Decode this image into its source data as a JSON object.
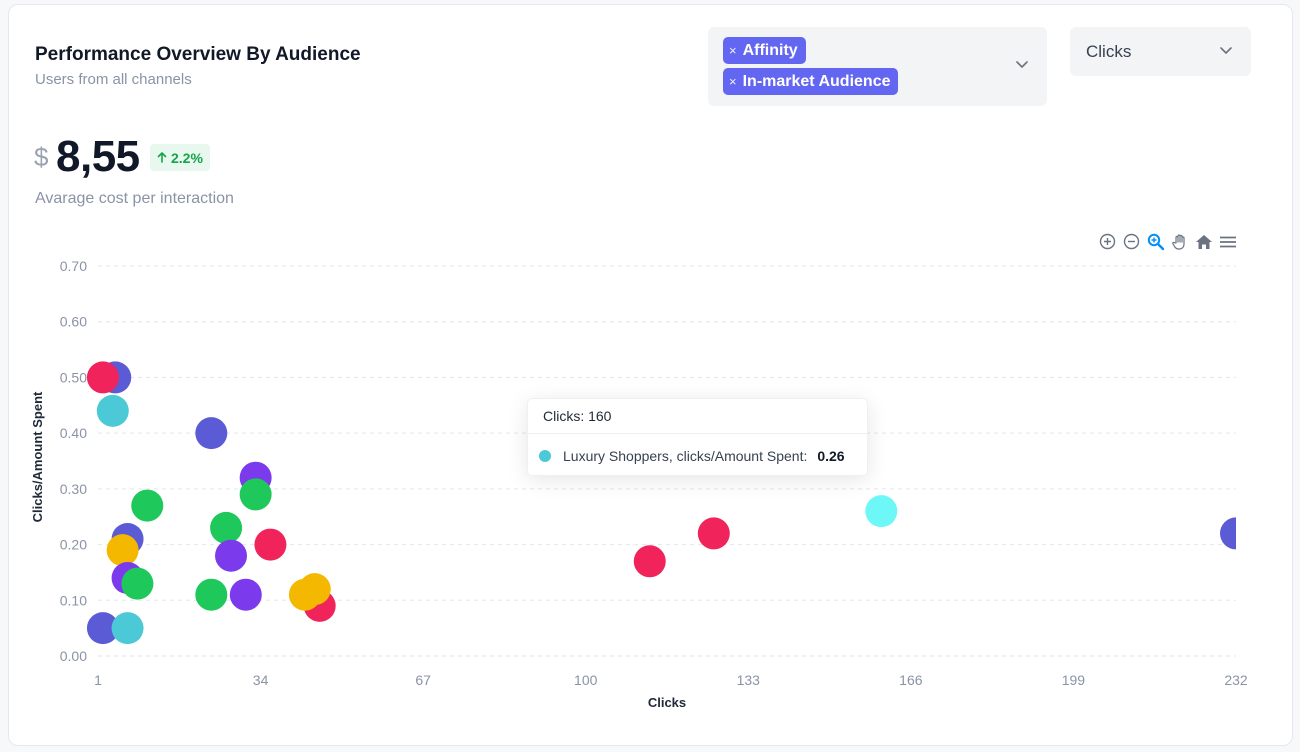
{
  "header": {
    "title": "Performance Overview By Audience",
    "subtitle": "Users from all channels"
  },
  "filters": {
    "audience_tags": [
      "Affinity",
      "In-market Audience"
    ],
    "remove_glyph": "×",
    "metric_select": "Clicks"
  },
  "kpi": {
    "currency": "$",
    "value": "8,55",
    "delta": "2.2%",
    "delta_direction": "up",
    "caption": "Avarage cost per interaction"
  },
  "toolbar": {
    "icons": [
      "zoom-in-icon",
      "zoom-out-icon",
      "selection-zoom-icon",
      "pan-hand-icon",
      "reset-home-icon",
      "menu-icon"
    ]
  },
  "tooltip": {
    "header": "Clicks: 160",
    "series": "Luxury Shoppers, clicks/Amount Spent:",
    "value": "0.26",
    "color": "#4cc9d6"
  },
  "colors": {
    "accent": "#6366f1",
    "positive": "#16a34a",
    "grid": "#e3e6ec"
  },
  "chart_data": {
    "type": "scatter",
    "xlabel": "Clicks",
    "ylabel": "Clicks/Amount Spent",
    "xlim": [
      1,
      232
    ],
    "ylim": [
      0,
      0.7
    ],
    "x_ticks": [
      1,
      34,
      67,
      100,
      133,
      166,
      199,
      232
    ],
    "y_ticks": [
      "0.00",
      "0.10",
      "0.20",
      "0.30",
      "0.40",
      "0.50",
      "0.60",
      "0.70"
    ],
    "grid": true,
    "points": [
      {
        "x": 4.5,
        "y": 0.5,
        "color": "#5b5bd6"
      },
      {
        "x": 2,
        "y": 0.5,
        "color": "#f0235a"
      },
      {
        "x": 4,
        "y": 0.44,
        "color": "#4cc9d6"
      },
      {
        "x": 24,
        "y": 0.4,
        "color": "#5b5bd6"
      },
      {
        "x": 33,
        "y": 0.32,
        "color": "#7c3aed"
      },
      {
        "x": 33,
        "y": 0.29,
        "color": "#1ec85a"
      },
      {
        "x": 11,
        "y": 0.27,
        "color": "#1ec85a"
      },
      {
        "x": 27,
        "y": 0.23,
        "color": "#1ec85a"
      },
      {
        "x": 7,
        "y": 0.21,
        "color": "#5b5bd6"
      },
      {
        "x": 36,
        "y": 0.2,
        "color": "#f0235a"
      },
      {
        "x": 6,
        "y": 0.19,
        "color": "#f5b800"
      },
      {
        "x": 28,
        "y": 0.18,
        "color": "#7c3aed"
      },
      {
        "x": 7,
        "y": 0.14,
        "color": "#7c3aed"
      },
      {
        "x": 9,
        "y": 0.13,
        "color": "#1ec85a"
      },
      {
        "x": 24,
        "y": 0.11,
        "color": "#1ec85a"
      },
      {
        "x": 31,
        "y": 0.11,
        "color": "#7c3aed"
      },
      {
        "x": 46,
        "y": 0.09,
        "color": "#f0235a"
      },
      {
        "x": 43,
        "y": 0.11,
        "color": "#f5b800"
      },
      {
        "x": 45,
        "y": 0.12,
        "color": "#f5b800"
      },
      {
        "x": 2,
        "y": 0.05,
        "color": "#5b5bd6"
      },
      {
        "x": 7,
        "y": 0.05,
        "color": "#4cc9d6"
      },
      {
        "x": 113,
        "y": 0.17,
        "color": "#f0235a"
      },
      {
        "x": 126,
        "y": 0.22,
        "color": "#f0235a"
      },
      {
        "x": 160,
        "y": 0.26,
        "color": "#6ef7f7"
      },
      {
        "x": 232,
        "y": 0.22,
        "color": "#5b5bd6"
      }
    ]
  }
}
